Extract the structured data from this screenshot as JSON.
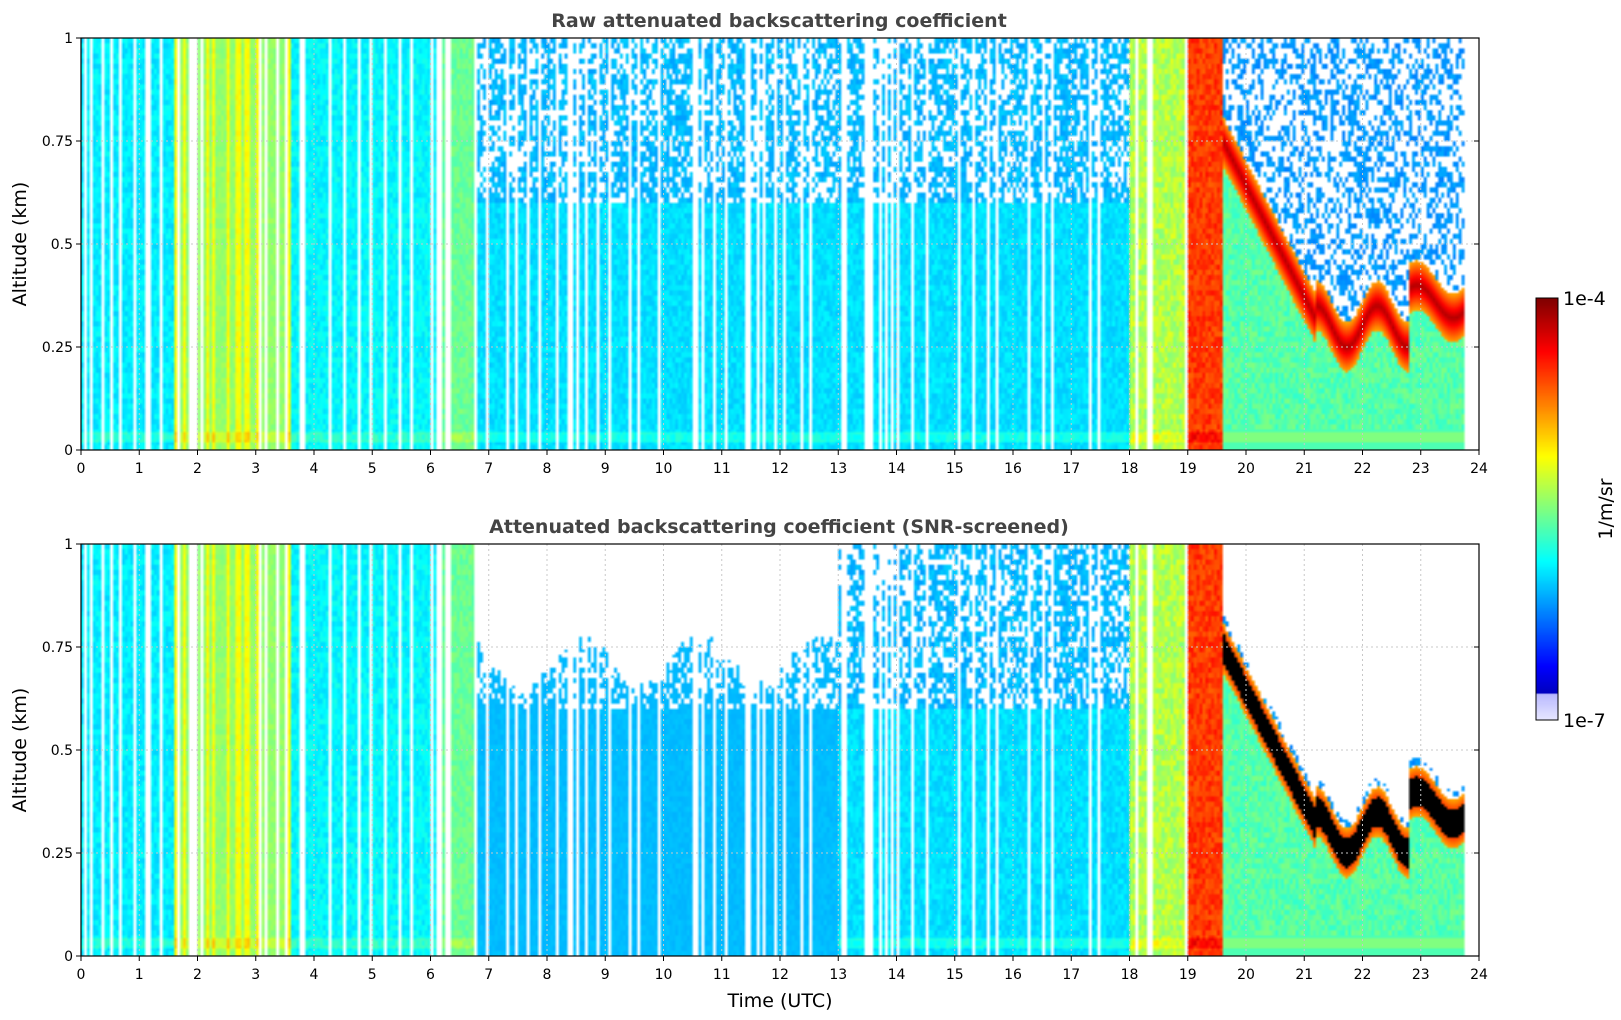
{
  "chart_data": [
    {
      "type": "heatmap",
      "title": "Raw attenuated backscattering coefficient",
      "xlabel": "",
      "ylabel": "Altitude (km)",
      "xlim": [
        0,
        24
      ],
      "ylim": [
        0,
        1
      ],
      "xticks": [
        "0",
        "1",
        "2",
        "3",
        "4",
        "5",
        "6",
        "7",
        "8",
        "9",
        "10",
        "11",
        "12",
        "13",
        "14",
        "15",
        "16",
        "17",
        "18",
        "19",
        "20",
        "21",
        "22",
        "23",
        "24"
      ],
      "yticks": [
        "0",
        "0.25",
        "0.5",
        "0.75",
        "1"
      ],
      "grid": true,
      "screened": false,
      "features": [
        {
          "label": "intermittent-profiles",
          "time_start": 0,
          "time_end": 18.9,
          "value_log10": -5.8
        },
        {
          "label": "aerosol-layer-peak",
          "time_start": 1.8,
          "time_end": 3.5,
          "value_log10": -5.2
        },
        {
          "label": "strong-return",
          "time_start": 19.0,
          "time_end": 19.6,
          "value_log10": -4.3
        },
        {
          "label": "descending-cloud-layer",
          "time_start": 19.6,
          "time_end": 23.7,
          "altitude_start": 0.75,
          "altitude_end": 0.3,
          "value_log10": -4.0
        }
      ]
    },
    {
      "type": "heatmap",
      "title": "Attenuated backscattering coefficient (SNR-screened)",
      "xlabel": "Time (UTC)",
      "ylabel": "Altitude (km)",
      "xlim": [
        0,
        24
      ],
      "ylim": [
        0,
        1
      ],
      "xticks": [
        "0",
        "1",
        "2",
        "3",
        "4",
        "5",
        "6",
        "7",
        "8",
        "9",
        "10",
        "11",
        "12",
        "13",
        "14",
        "15",
        "16",
        "17",
        "18",
        "19",
        "20",
        "21",
        "22",
        "23",
        "24"
      ],
      "yticks": [
        "0",
        "0.25",
        "0.5",
        "0.75",
        "1"
      ],
      "grid": true,
      "screened": true,
      "features": [
        {
          "label": "screened-top-region",
          "time_start": 6.8,
          "time_end": 13.0,
          "altitude_start": 0.65,
          "altitude_end": 1.0
        },
        {
          "label": "descending-cloud-layer",
          "time_start": 19.6,
          "time_end": 23.7,
          "altitude_start": 0.75,
          "altitude_end": 0.3,
          "value_log10": -4.0
        }
      ]
    }
  ],
  "colorbar": {
    "label": "1/m/sr",
    "max_label": "1e-4",
    "min_label": "1e-7",
    "range_log10": [
      -7,
      -4
    ],
    "colormap": "jet"
  },
  "colors": {
    "missing": "#ffffff",
    "saturated": "#000000",
    "grid": "#c8c8c8",
    "title": "#444444"
  }
}
